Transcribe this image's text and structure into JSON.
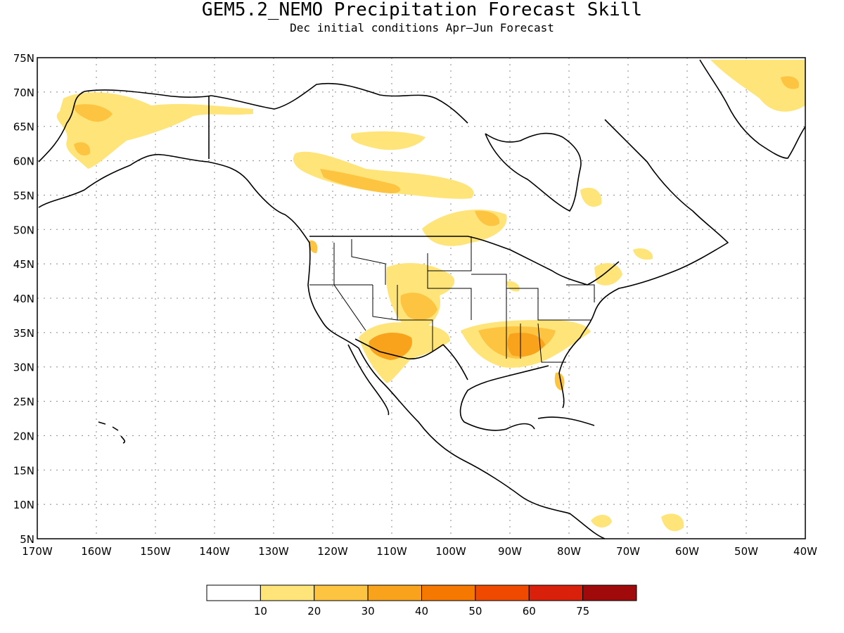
{
  "title": "GEM5.2_NEMO Precipitation Forecast Skill",
  "subtitle": "Dec initial conditions  Apr—Jun Forecast",
  "map": {
    "lon_range": [
      -170,
      -40
    ],
    "lat_range": [
      5,
      75
    ],
    "lat_ticks": [
      "5N",
      "10N",
      "15N",
      "20N",
      "25N",
      "30N",
      "35N",
      "40N",
      "45N",
      "50N",
      "55N",
      "60N",
      "65N",
      "70N",
      "75N"
    ],
    "lon_ticks": [
      "170W",
      "160W",
      "150W",
      "140W",
      "130W",
      "120W",
      "110W",
      "100W",
      "90W",
      "80W",
      "70W",
      "60W",
      "50W",
      "40W"
    ],
    "gridlines": "dotted"
  },
  "colorbar": {
    "labels": [
      "10",
      "20",
      "30",
      "40",
      "50",
      "60",
      "75"
    ],
    "colors": [
      "#ffffff",
      "#ffe47a",
      "#fcc440",
      "#f9a21c",
      "#f57800",
      "#f04a00",
      "#d8200a",
      "#a00a0a"
    ]
  }
}
